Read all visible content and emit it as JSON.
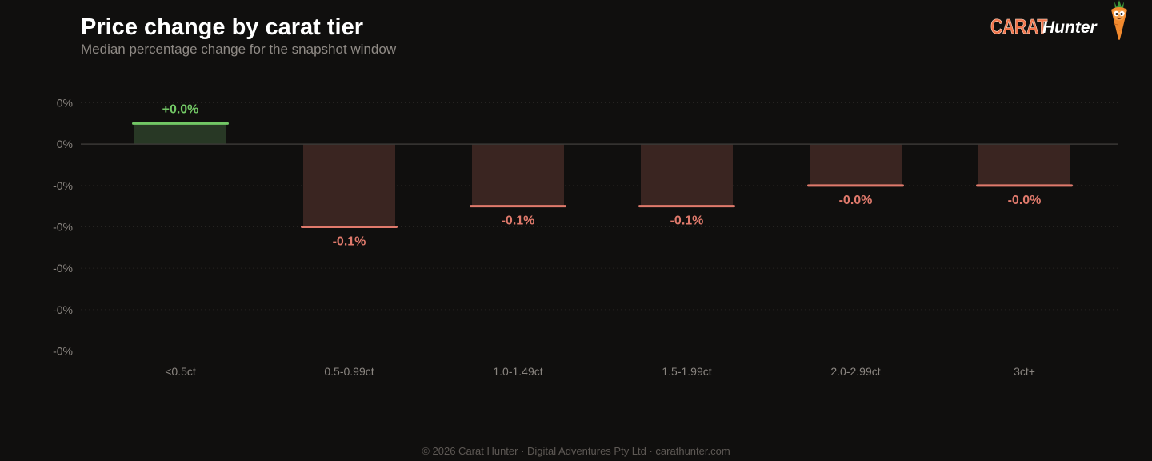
{
  "header": {
    "title": "Price change by carat tier",
    "subtitle": "Median percentage change for the snapshot window"
  },
  "logo": {
    "word1": "CARAT",
    "word2": "Hunter",
    "mascot_icon": "carrot-mascot-icon"
  },
  "footer": {
    "text": "© 2026 Carat Hunter · Digital Adventures Pty Ltd · carathunter.com"
  },
  "colors": {
    "background": "#100f0e",
    "positive_fill": "#283825",
    "positive_line": "#72c765",
    "negative_fill": "#3a2521",
    "negative_line": "#e07a6c",
    "axis_text": "#8a8580",
    "grid": "#262422",
    "zero_line": "#3a3836"
  },
  "chart_data": {
    "type": "bar",
    "title": "Price change by carat tier",
    "subtitle": "Median percentage change for the snapshot window",
    "categories": [
      "<0.5ct",
      "0.5-0.99ct",
      "1.0-1.49ct",
      "1.5-1.99ct",
      "2.0-2.99ct",
      "3ct+"
    ],
    "values": [
      0.025,
      -0.1,
      -0.075,
      -0.075,
      -0.05,
      -0.05
    ],
    "value_labels": [
      "+0.0%",
      "-0.1%",
      "-0.1%",
      "-0.1%",
      "-0.0%",
      "-0.0%"
    ],
    "ytick_values": [
      0.05,
      0,
      -0.05,
      -0.1,
      -0.15,
      -0.2,
      -0.25
    ],
    "ytick_labels": [
      "0%",
      "0%",
      "-0%",
      "-0%",
      "-0%",
      "-0%",
      "-0%"
    ],
    "ylim": [
      -0.25,
      0.05
    ],
    "xlabel": "",
    "ylabel": "",
    "grid": true,
    "unit": "%"
  }
}
